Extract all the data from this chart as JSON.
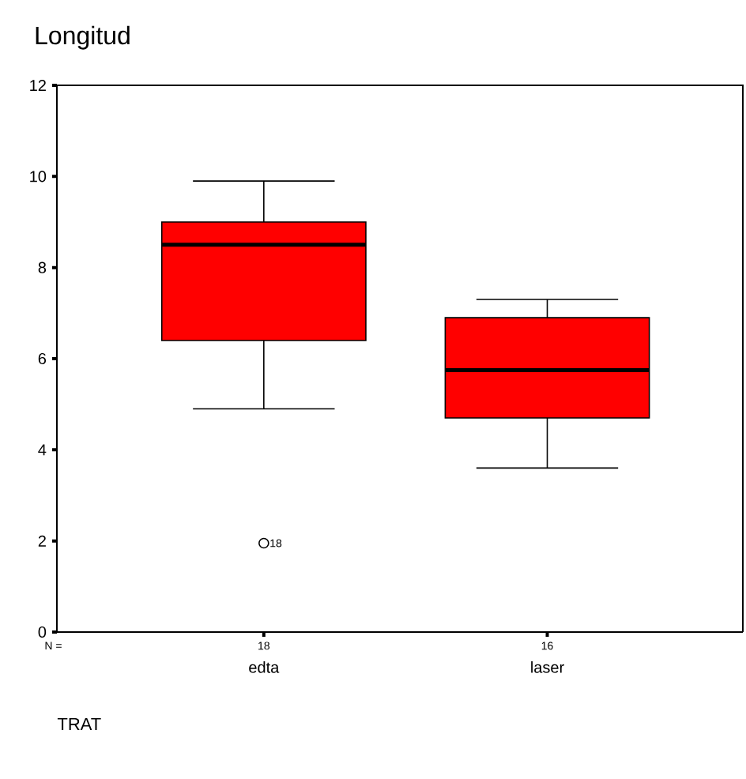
{
  "chart_data": {
    "type": "box",
    "title": "Longitud",
    "categories": [
      "edta",
      "laser"
    ],
    "color": "#ff0000",
    "boxes": [
      {
        "low": 4.9,
        "q1": 6.4,
        "median": 8.5,
        "q3": 9.0,
        "high": 9.9,
        "outliers": [
          1.95
        ]
      },
      {
        "low": 3.6,
        "q1": 4.7,
        "median": 5.75,
        "q3": 6.9,
        "high": 7.3
      }
    ],
    "ylim": [
      0,
      12
    ],
    "yticks": [
      0,
      2,
      4,
      6,
      8,
      10,
      12
    ],
    "annotations": [
      "N =",
      "18",
      "16",
      "18",
      "TRAT"
    ]
  }
}
